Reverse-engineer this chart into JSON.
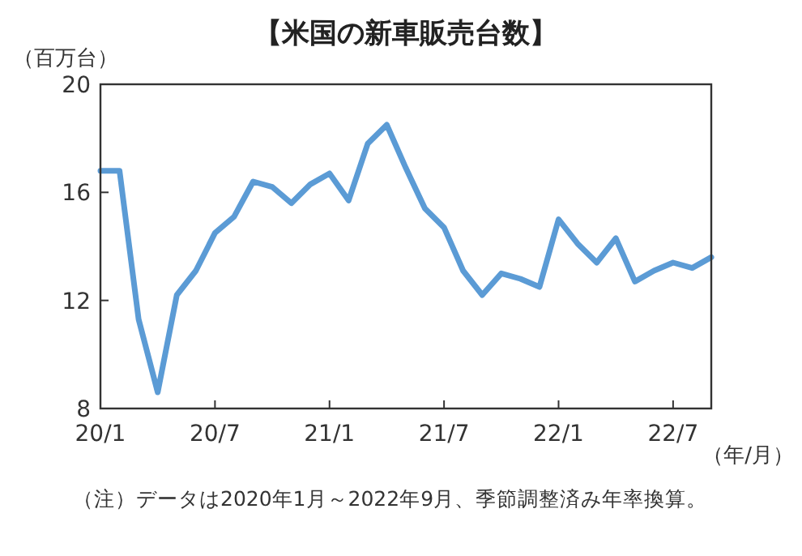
{
  "chart_data": {
    "type": "line",
    "title": "【米国の新車販売台数】",
    "ylabel": "（百万台）",
    "xlabel": "（年/月）",
    "annotations": [
      "（注）データは2020年1月～2022年9月、季節調整済み年率換算。"
    ],
    "x": [
      "2020-01",
      "2020-02",
      "2020-03",
      "2020-04",
      "2020-05",
      "2020-06",
      "2020-07",
      "2020-08",
      "2020-09",
      "2020-10",
      "2020-11",
      "2020-12",
      "2021-01",
      "2021-02",
      "2021-03",
      "2021-04",
      "2021-05",
      "2021-06",
      "2021-07",
      "2021-08",
      "2021-09",
      "2021-10",
      "2021-11",
      "2021-12",
      "2022-01",
      "2022-02",
      "2022-03",
      "2022-04",
      "2022-05",
      "2022-06",
      "2022-07",
      "2022-08",
      "2022-09"
    ],
    "series": [
      {
        "color": "#5b9bd5",
        "values": [
          16.8,
          16.8,
          11.3,
          8.6,
          12.2,
          13.1,
          14.5,
          15.1,
          16.4,
          16.2,
          15.6,
          16.3,
          16.7,
          15.7,
          17.8,
          18.5,
          16.9,
          15.4,
          14.7,
          13.1,
          12.2,
          13.0,
          12.8,
          12.5,
          15.0,
          14.1,
          13.4,
          14.3,
          12.7,
          13.1,
          13.4,
          13.2,
          13.6
        ]
      }
    ],
    "xlim": [
      "2020-01",
      "2022-09"
    ],
    "xticks": [
      {
        "value": "2020-01",
        "label": "20/1"
      },
      {
        "value": "2020-07",
        "label": "20/7"
      },
      {
        "value": "2021-01",
        "label": "21/1"
      },
      {
        "value": "2021-07",
        "label": "21/7"
      },
      {
        "value": "2022-01",
        "label": "22/1"
      },
      {
        "value": "2022-07",
        "label": "22/7"
      }
    ],
    "ylim": [
      8,
      20
    ],
    "yticks": [
      8,
      12,
      16,
      20
    ],
    "grid": false,
    "marker": "none",
    "line_style": "solid"
  }
}
